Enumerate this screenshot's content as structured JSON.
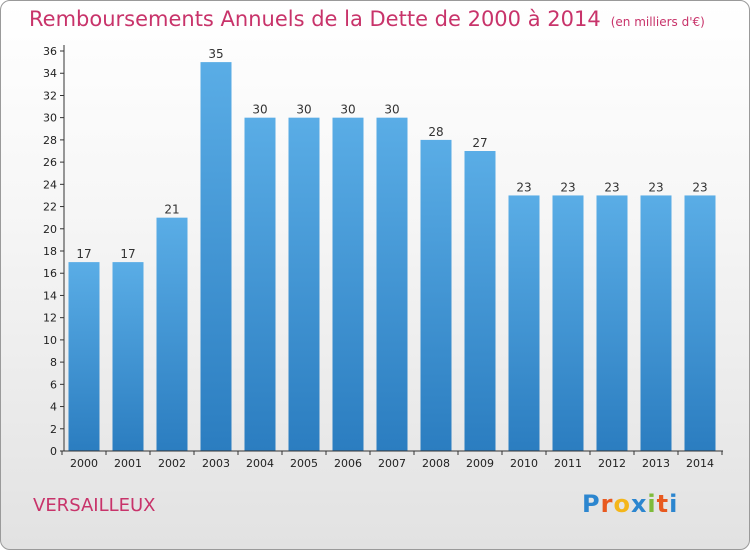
{
  "title": "Remboursements Annuels de la Dette de 2000 à 2014",
  "unit_note": "(en milliers d'€)",
  "place": "VERSAILLEUX",
  "brand": {
    "letters": [
      "P",
      "r",
      "o",
      "x",
      "i",
      "t",
      "i"
    ],
    "colors": [
      "#2c86cf",
      "#e8591f",
      "#f4b61a",
      "#2c86cf",
      "#7fbb3b",
      "#e8591f",
      "#2c86cf"
    ]
  },
  "colors": {
    "title": "#c8336a",
    "bar_top": "#5aade6",
    "bar_bottom": "#2b7dc0",
    "axis": "#333333"
  },
  "chart_data": {
    "type": "bar",
    "title": "Remboursements Annuels de la Dette de 2000 à 2014",
    "categories": [
      "2000",
      "2001",
      "2002",
      "2003",
      "2004",
      "2005",
      "2006",
      "2007",
      "2008",
      "2009",
      "2010",
      "2011",
      "2012",
      "2013",
      "2014"
    ],
    "values": [
      17,
      17,
      21,
      35,
      30,
      30,
      30,
      30,
      28,
      27,
      23,
      23,
      23,
      23,
      23
    ],
    "ylim": [
      0,
      36
    ],
    "yticks": [
      0,
      2,
      4,
      6,
      8,
      10,
      12,
      14,
      16,
      18,
      20,
      22,
      24,
      26,
      28,
      30,
      32,
      34,
      36
    ],
    "data_labels": true,
    "grid": false,
    "legend": "none"
  }
}
